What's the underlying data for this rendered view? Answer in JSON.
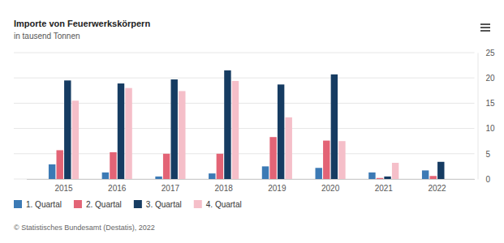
{
  "chart_data": {
    "type": "bar",
    "title": "Importe von Feuerwerkskörpern",
    "subtitle": "in tausend Tonnen",
    "source": "© Statistisches Bundesamt (Destatis), 2022",
    "categories": [
      "2015",
      "2016",
      "2017",
      "2018",
      "2019",
      "2020",
      "2021",
      "2022"
    ],
    "series": [
      {
        "name": "1. Quartal",
        "color": "#3c7ab5",
        "values": [
          2.9,
          1.3,
          0.5,
          1.1,
          2.5,
          2.2,
          1.3,
          1.7
        ]
      },
      {
        "name": "2. Quartal",
        "color": "#e36476",
        "values": [
          5.7,
          5.3,
          5.0,
          5.0,
          8.3,
          7.6,
          0.2,
          0.6
        ]
      },
      {
        "name": "3. Quartal",
        "color": "#163c62",
        "values": [
          19.5,
          18.9,
          19.7,
          21.5,
          18.7,
          20.7,
          0.5,
          3.4
        ]
      },
      {
        "name": "4. Quartal",
        "color": "#f5bfc9",
        "values": [
          15.5,
          18.0,
          17.4,
          19.4,
          12.2,
          7.5,
          3.2,
          null
        ]
      }
    ],
    "ylim": [
      0,
      25
    ],
    "yticks": [
      0,
      5,
      10,
      15,
      20,
      25
    ],
    "grid": true,
    "legend": "bottom"
  }
}
